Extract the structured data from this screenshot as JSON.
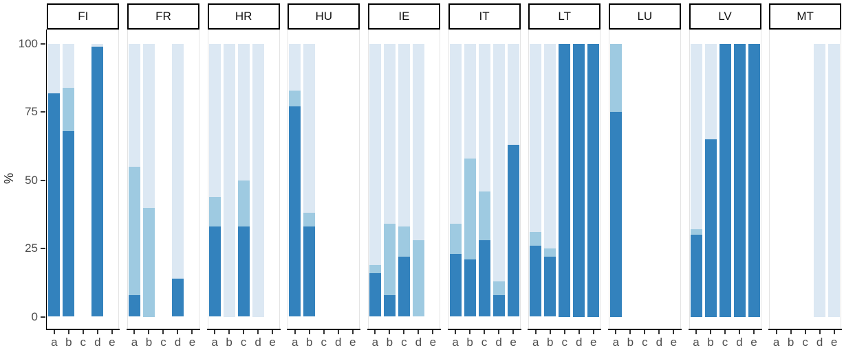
{
  "chart_data": {
    "type": "bar",
    "stacked": true,
    "title": "",
    "xlabel": "",
    "ylabel": "%",
    "ylim": [
      0,
      100
    ],
    "y_ticks": [
      0,
      25,
      50,
      75,
      100
    ],
    "categories": [
      "a",
      "b",
      "c",
      "d",
      "e"
    ],
    "grid": false,
    "legend_position": "none",
    "facet_labels": [
      "FI",
      "FR",
      "HR",
      "HU",
      "IE",
      "IT",
      "LT",
      "LU",
      "LV",
      "MT"
    ],
    "series_colors": {
      "dark_blue": "#3382bd",
      "medium_blue": "#9ecae1",
      "light_blue": "#dce8f3"
    },
    "stack_order_bottom_to_top": [
      "dark",
      "medium",
      "light"
    ],
    "facets": [
      {
        "label": "FI",
        "bars": [
          {
            "category": "a",
            "dark": 82,
            "medium": 0,
            "light": 18
          },
          {
            "category": "b",
            "dark": 68,
            "medium": 16,
            "light": 16
          },
          {
            "category": "c",
            "dark": 0,
            "medium": 0,
            "light": 0
          },
          {
            "category": "d",
            "dark": 99,
            "medium": 0,
            "light": 1
          },
          {
            "category": "e",
            "dark": 0,
            "medium": 0,
            "light": 0
          }
        ]
      },
      {
        "label": "FR",
        "bars": [
          {
            "category": "a",
            "dark": 8,
            "medium": 47,
            "light": 45
          },
          {
            "category": "b",
            "dark": 0,
            "medium": 40,
            "light": 60
          },
          {
            "category": "c",
            "dark": 0,
            "medium": 0,
            "light": 0
          },
          {
            "category": "d",
            "dark": 14,
            "medium": 0,
            "light": 86
          },
          {
            "category": "e",
            "dark": 0,
            "medium": 0,
            "light": 0
          }
        ]
      },
      {
        "label": "HR",
        "bars": [
          {
            "category": "a",
            "dark": 33,
            "medium": 11,
            "light": 56
          },
          {
            "category": "b",
            "dark": 0,
            "medium": 0,
            "light": 100
          },
          {
            "category": "c",
            "dark": 33,
            "medium": 17,
            "light": 50
          },
          {
            "category": "d",
            "dark": 0,
            "medium": 0,
            "light": 100
          },
          {
            "category": "e",
            "dark": 0,
            "medium": 0,
            "light": 0
          }
        ]
      },
      {
        "label": "HU",
        "bars": [
          {
            "category": "a",
            "dark": 77,
            "medium": 6,
            "light": 17
          },
          {
            "category": "b",
            "dark": 33,
            "medium": 5,
            "light": 62
          },
          {
            "category": "c",
            "dark": 0,
            "medium": 0,
            "light": 0
          },
          {
            "category": "d",
            "dark": 0,
            "medium": 0,
            "light": 0
          },
          {
            "category": "e",
            "dark": 0,
            "medium": 0,
            "light": 0
          }
        ]
      },
      {
        "label": "IE",
        "bars": [
          {
            "category": "a",
            "dark": 16,
            "medium": 3,
            "light": 81
          },
          {
            "category": "b",
            "dark": 8,
            "medium": 26,
            "light": 66
          },
          {
            "category": "c",
            "dark": 22,
            "medium": 11,
            "light": 67
          },
          {
            "category": "d",
            "dark": 0,
            "medium": 28,
            "light": 72
          },
          {
            "category": "e",
            "dark": 0,
            "medium": 0,
            "light": 0
          }
        ]
      },
      {
        "label": "IT",
        "bars": [
          {
            "category": "a",
            "dark": 23,
            "medium": 11,
            "light": 66
          },
          {
            "category": "b",
            "dark": 21,
            "medium": 37,
            "light": 42
          },
          {
            "category": "c",
            "dark": 28,
            "medium": 18,
            "light": 54
          },
          {
            "category": "d",
            "dark": 8,
            "medium": 5,
            "light": 87
          },
          {
            "category": "e",
            "dark": 63,
            "medium": 0,
            "light": 37
          }
        ]
      },
      {
        "label": "LT",
        "bars": [
          {
            "category": "a",
            "dark": 26,
            "medium": 5,
            "light": 69
          },
          {
            "category": "b",
            "dark": 22,
            "medium": 3,
            "light": 75
          },
          {
            "category": "c",
            "dark": 100,
            "medium": 0,
            "light": 0
          },
          {
            "category": "d",
            "dark": 100,
            "medium": 0,
            "light": 0
          },
          {
            "category": "e",
            "dark": 100,
            "medium": 0,
            "light": 0
          }
        ]
      },
      {
        "label": "LU",
        "bars": [
          {
            "category": "a",
            "dark": 75,
            "medium": 25,
            "light": 0
          },
          {
            "category": "b",
            "dark": 0,
            "medium": 0,
            "light": 0
          },
          {
            "category": "c",
            "dark": 0,
            "medium": 0,
            "light": 0
          },
          {
            "category": "d",
            "dark": 0,
            "medium": 0,
            "light": 0
          },
          {
            "category": "e",
            "dark": 0,
            "medium": 0,
            "light": 0
          }
        ]
      },
      {
        "label": "LV",
        "bars": [
          {
            "category": "a",
            "dark": 30,
            "medium": 2,
            "light": 68
          },
          {
            "category": "b",
            "dark": 65,
            "medium": 0,
            "light": 35
          },
          {
            "category": "c",
            "dark": 100,
            "medium": 0,
            "light": 0
          },
          {
            "category": "d",
            "dark": 100,
            "medium": 0,
            "light": 0
          },
          {
            "category": "e",
            "dark": 100,
            "medium": 0,
            "light": 0
          }
        ]
      },
      {
        "label": "MT",
        "bars": [
          {
            "category": "a",
            "dark": 0,
            "medium": 0,
            "light": 0
          },
          {
            "category": "b",
            "dark": 0,
            "medium": 0,
            "light": 0
          },
          {
            "category": "c",
            "dark": 0,
            "medium": 0,
            "light": 0
          },
          {
            "category": "d",
            "dark": 0,
            "medium": 0,
            "light": 100
          },
          {
            "category": "e",
            "dark": 0,
            "medium": 0,
            "light": 100
          }
        ]
      }
    ]
  }
}
